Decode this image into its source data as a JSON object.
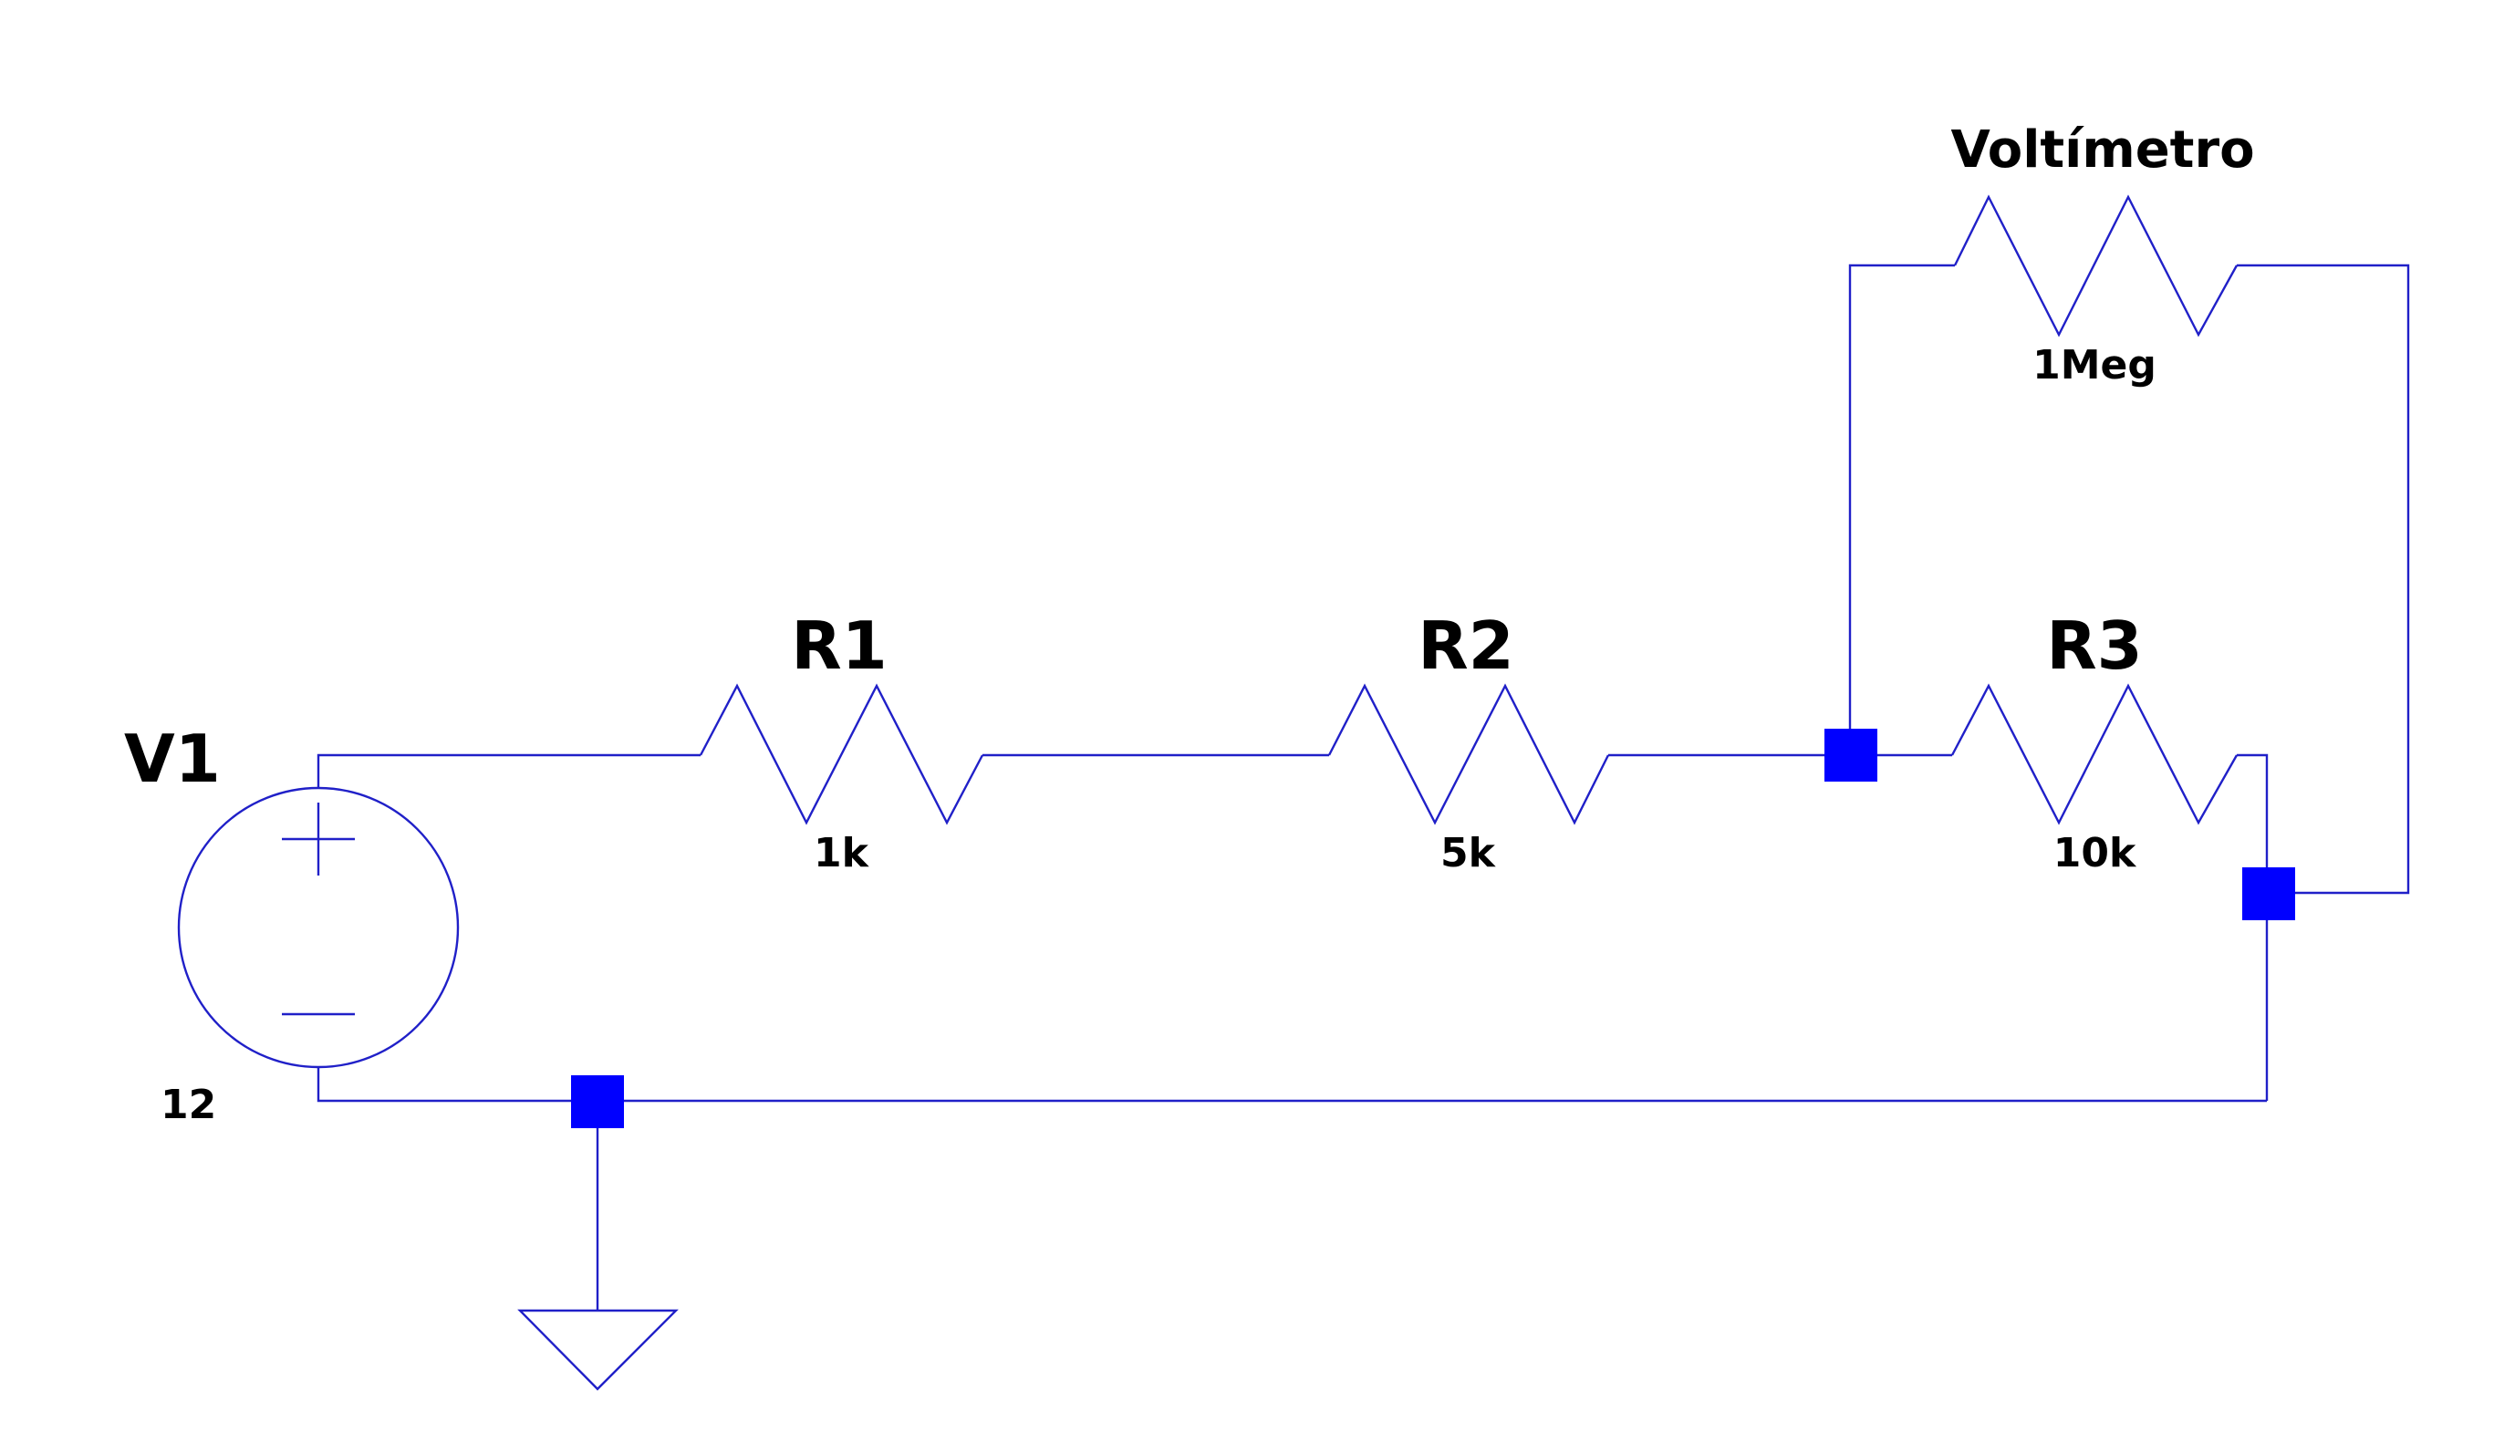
{
  "components": {
    "v1": {
      "name": "V1",
      "value": "12"
    },
    "r1": {
      "name": "R1",
      "value": "1k"
    },
    "r2": {
      "name": "R2",
      "value": "5k"
    },
    "r3": {
      "name": "R3",
      "value": "10k"
    },
    "voltmeter": {
      "name": "Voltímetro",
      "value": "1Meg"
    }
  },
  "colors": {
    "wire": "#2020c8",
    "junction": "#0000ff",
    "text": "#000000",
    "background": "#ffffff"
  }
}
